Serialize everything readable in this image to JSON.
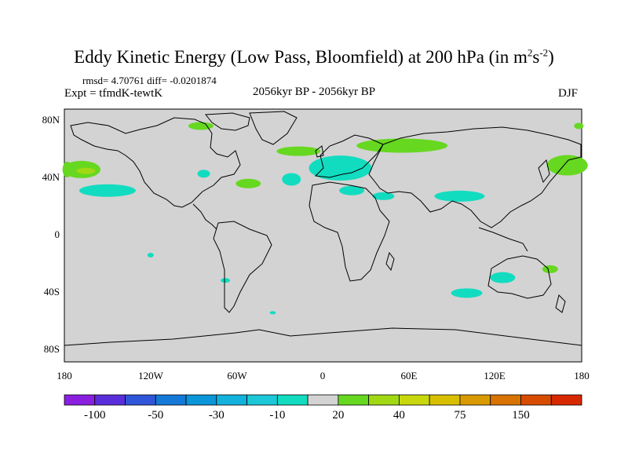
{
  "title": {
    "main": "Eddy Kinetic Energy (Low Pass, Bloomfield) at 200 hPa (in m",
    "sup1": "2",
    "mid": "s",
    "sup2": "-2",
    "end": ")"
  },
  "stats": "rmsd= 4.70761 diff= -0.0201874",
  "experiment": "Expt = tfmdK-tewtK",
  "period": "2056kyr BP - 2056kyr BP",
  "season": "DJF",
  "map": {
    "projection": "cylindrical equidistant",
    "lon_range": [
      -180,
      180
    ],
    "lat_range": [
      -90,
      90
    ],
    "background_color": "#d3d3d3",
    "lat_labels": [
      "80N",
      "40N",
      "0",
      "40S",
      "80S"
    ],
    "lon_labels": [
      "180",
      "120W",
      "60W",
      "0",
      "60E",
      "120E",
      "180"
    ]
  },
  "colorbar": {
    "colors": [
      "#8a1fe0",
      "#5a2ddb",
      "#2f55d8",
      "#1479d8",
      "#0a96d8",
      "#12b2dd",
      "#1cc8d8",
      "#12dcc0",
      "#d3d3d3",
      "#66d820",
      "#a0d814",
      "#c8d80c",
      "#d8c000",
      "#d89a00",
      "#d87200",
      "#d84c00",
      "#d82800"
    ],
    "labels": [
      "-100",
      "-50",
      "-30",
      "-10",
      "20",
      "40",
      "75",
      "150"
    ],
    "label_index": [
      1,
      3,
      5,
      7,
      9,
      11,
      13,
      15
    ]
  },
  "anomaly_regions": [
    {
      "id": "north-atlantic-top",
      "level": "20",
      "color": "#66d820",
      "lon": -85,
      "lat": 78
    },
    {
      "id": "north-pacific-east",
      "level": "20",
      "color": "#66d820",
      "lon": -168,
      "lat": 47
    },
    {
      "id": "north-pacific-core",
      "level": "40",
      "color": "#a0d814",
      "lon": -165,
      "lat": 46
    },
    {
      "id": "north-pacific-cyan",
      "level": "-10",
      "color": "#12dcc0",
      "lon": -150,
      "lat": 32
    },
    {
      "id": "great-lakes",
      "level": "-10",
      "color": "#12dcc0",
      "lon": -83,
      "lat": 44
    },
    {
      "id": "north-atlantic-mid",
      "level": "20",
      "color": "#66d820",
      "lon": -52,
      "lat": 37
    },
    {
      "id": "greenland-sea",
      "level": "20",
      "color": "#66d820",
      "lon": -17,
      "lat": 60
    },
    {
      "id": "atlantic-cyan",
      "level": "-10",
      "color": "#12dcc0",
      "lon": -22,
      "lat": 40
    },
    {
      "id": "europe",
      "level": "-10",
      "color": "#12dcc0",
      "lon": 12,
      "lat": 48
    },
    {
      "id": "mediterranean",
      "level": "-10",
      "color": "#12dcc0",
      "lon": 20,
      "lat": 32
    },
    {
      "id": "siberia",
      "level": "20",
      "color": "#66d820",
      "lon": 55,
      "lat": 64
    },
    {
      "id": "middle-east",
      "level": "-10",
      "color": "#12dcc0",
      "lon": 42,
      "lat": 28
    },
    {
      "id": "central-asia",
      "level": "-10",
      "color": "#12dcc0",
      "lon": 95,
      "lat": 28
    },
    {
      "id": "northwest-pacific",
      "level": "20",
      "color": "#66d820",
      "lon": 170,
      "lat": 50
    },
    {
      "id": "northwest-pacific-east",
      "level": "20",
      "color": "#66d820",
      "lon": -178,
      "lat": 47
    },
    {
      "id": "australia",
      "level": "-10",
      "color": "#12dcc0",
      "lon": 125,
      "lat": -30
    },
    {
      "id": "new-zealand",
      "level": "20",
      "color": "#66d820",
      "lon": 158,
      "lat": -24
    },
    {
      "id": "south-indian",
      "level": "-10",
      "color": "#12dcc0",
      "lon": 100,
      "lat": -41
    },
    {
      "id": "south-america",
      "level": "-10",
      "color": "#12dcc0",
      "lon": -68,
      "lat": -32
    },
    {
      "id": "south-pacific-small",
      "level": "-10",
      "color": "#12dcc0",
      "lon": -120,
      "lat": -14
    },
    {
      "id": "south-atlantic-small",
      "level": "-10",
      "color": "#12dcc0",
      "lon": -35,
      "lat": -55
    },
    {
      "id": "north-atlantic-east-edge",
      "level": "20",
      "color": "#66d820",
      "lon": 178,
      "lat": 78
    }
  ]
}
